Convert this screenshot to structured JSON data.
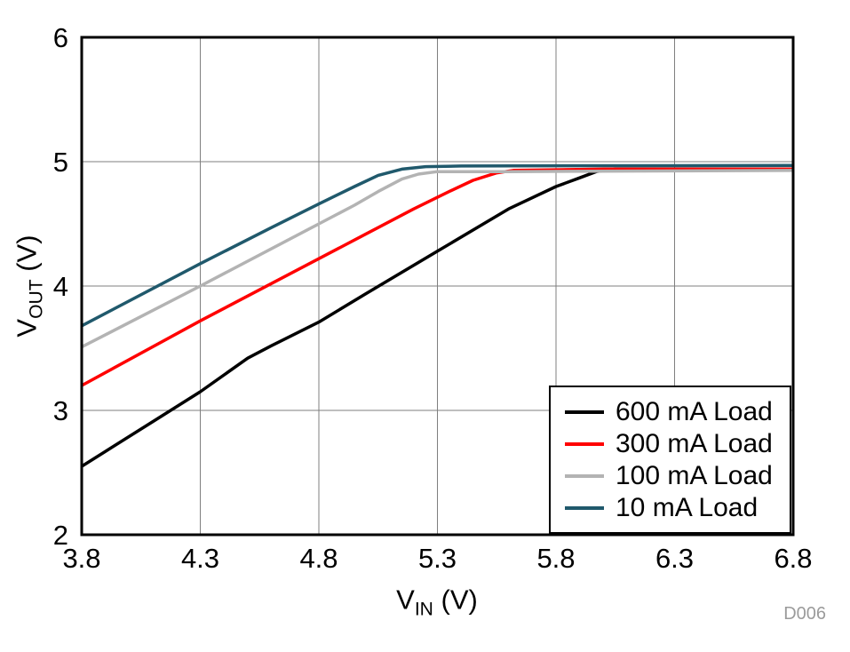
{
  "chart_data": {
    "type": "line",
    "title": "",
    "xlabel": "VIN (V)",
    "ylabel": "VOUT (V)",
    "xlabel_parts": {
      "base": "V",
      "sub": "IN",
      "unit": " (V)"
    },
    "ylabel_parts": {
      "base": "V",
      "sub": "OUT",
      "unit": " (V)"
    },
    "xlim": [
      3.8,
      6.8
    ],
    "ylim": [
      2,
      6
    ],
    "xticks": [
      3.8,
      4.3,
      4.8,
      5.3,
      5.8,
      6.3,
      6.8
    ],
    "xtick_labels": [
      "3.8",
      "4.3",
      "4.8",
      "5.3",
      "5.8",
      "6.3",
      "6.8"
    ],
    "yticks": [
      2,
      3,
      4,
      5,
      6
    ],
    "ytick_labels": [
      "2",
      "3",
      "4",
      "5",
      "6"
    ],
    "grid": true,
    "grid_color": "#7f7f7f",
    "axis_color": "#000000",
    "legend_position": "bottom-right",
    "watermark": "D006",
    "series": [
      {
        "name": "600 mA Load",
        "color": "#000000",
        "points": [
          [
            3.8,
            2.55
          ],
          [
            4.1,
            2.91
          ],
          [
            4.3,
            3.15
          ],
          [
            4.5,
            3.42
          ],
          [
            4.6,
            3.52
          ],
          [
            4.8,
            3.71
          ],
          [
            5.0,
            3.94
          ],
          [
            5.3,
            4.28
          ],
          [
            5.6,
            4.62
          ],
          [
            5.8,
            4.8
          ],
          [
            5.9,
            4.87
          ],
          [
            5.97,
            4.92
          ],
          [
            6.05,
            4.94
          ],
          [
            6.4,
            4.94
          ],
          [
            6.8,
            4.94
          ]
        ]
      },
      {
        "name": "300 mA Load",
        "color": "#ff0000",
        "points": [
          [
            3.8,
            3.2
          ],
          [
            4.3,
            3.72
          ],
          [
            4.8,
            4.22
          ],
          [
            5.0,
            4.42
          ],
          [
            5.2,
            4.62
          ],
          [
            5.35,
            4.76
          ],
          [
            5.45,
            4.85
          ],
          [
            5.55,
            4.91
          ],
          [
            5.62,
            4.93
          ],
          [
            6.0,
            4.94
          ],
          [
            6.8,
            4.94
          ]
        ]
      },
      {
        "name": "100 mA Load",
        "color": "#b3b3b3",
        "points": [
          [
            3.8,
            3.51
          ],
          [
            4.3,
            4.0
          ],
          [
            4.8,
            4.5
          ],
          [
            4.95,
            4.65
          ],
          [
            5.05,
            4.76
          ],
          [
            5.15,
            4.86
          ],
          [
            5.22,
            4.9
          ],
          [
            5.3,
            4.92
          ],
          [
            5.6,
            4.92
          ],
          [
            6.8,
            4.93
          ]
        ]
      },
      {
        "name": "10 mA Load",
        "color": "#20596c",
        "points": [
          [
            3.8,
            3.68
          ],
          [
            4.3,
            4.18
          ],
          [
            4.6,
            4.47
          ],
          [
            4.8,
            4.66
          ],
          [
            4.95,
            4.8
          ],
          [
            5.05,
            4.89
          ],
          [
            5.15,
            4.94
          ],
          [
            5.25,
            4.96
          ],
          [
            5.4,
            4.965
          ],
          [
            6.8,
            4.97
          ]
        ]
      }
    ]
  }
}
